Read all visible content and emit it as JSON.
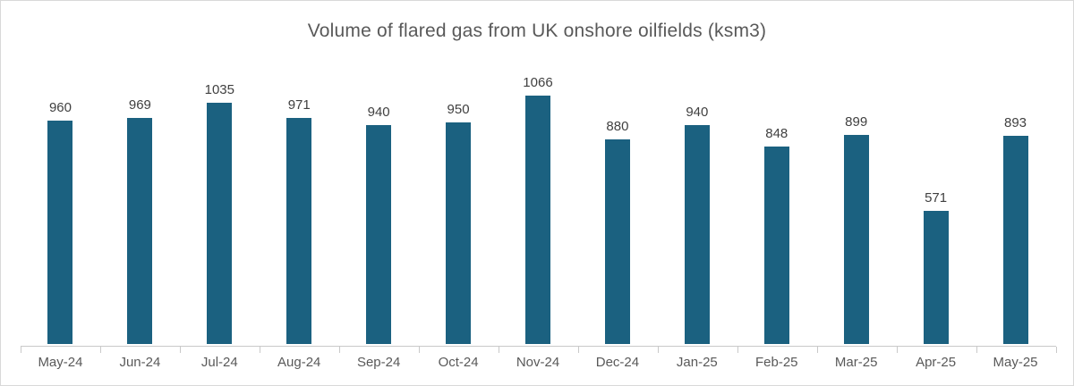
{
  "chart_data": {
    "type": "bar",
    "title": "Volume of flared gas from UK onshore oilfields (ksm3)",
    "categories": [
      "May-24",
      "Jun-24",
      "Jul-24",
      "Aug-24",
      "Sep-24",
      "Oct-24",
      "Nov-24",
      "Dec-24",
      "Jan-25",
      "Feb-25",
      "Mar-25",
      "Apr-25",
      "May-25"
    ],
    "values": [
      960,
      969,
      1035,
      971,
      940,
      950,
      1066,
      880,
      940,
      848,
      899,
      571,
      893
    ],
    "xlabel": "",
    "ylabel": "",
    "ylim": [
      0,
      1100
    ],
    "grid": false,
    "legend": "none",
    "data_labels": true,
    "colors": {
      "bar": "#1b6180",
      "title_text": "#595959",
      "value_label_text": "#404040",
      "axis_label_text": "#595959",
      "axis_line": "#c9c9c9",
      "frame_border": "#d9d9d9",
      "background": "#ffffff"
    }
  }
}
